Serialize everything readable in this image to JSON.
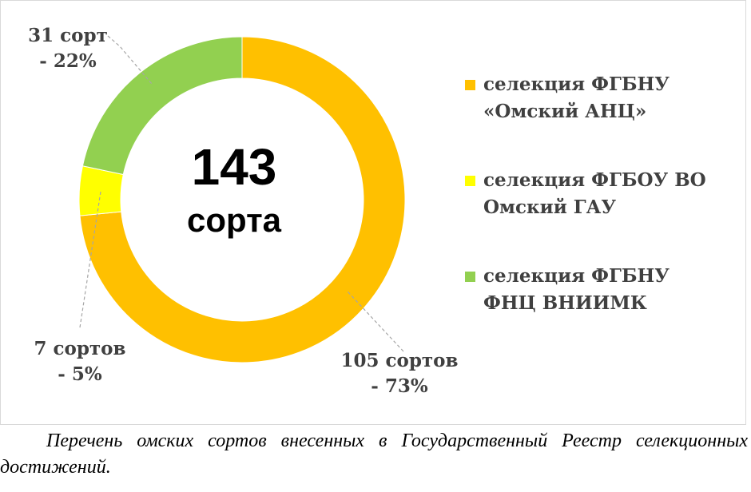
{
  "chart_data": {
    "type": "donut",
    "center_value": "143",
    "center_label": "сорта",
    "categories": [
      "селекция ФГБНУ «Омский АНЦ»",
      "селекция ФГБОУ ВО Омский ГАУ",
      "селекция ФГБНУ ФНЦ ВНИИМК"
    ],
    "values": [
      105,
      7,
      31
    ],
    "value_labels": [
      "105 сортов\n- 73%",
      "7 сортов\n- 5%",
      "31 сорт\n- 22%"
    ],
    "colors": [
      "#ffc000",
      "#ffff00",
      "#92d050"
    ],
    "legend": "right"
  },
  "caption": "Перечень омских сортов внесенных в Государственный Реестр селекционных достижений."
}
